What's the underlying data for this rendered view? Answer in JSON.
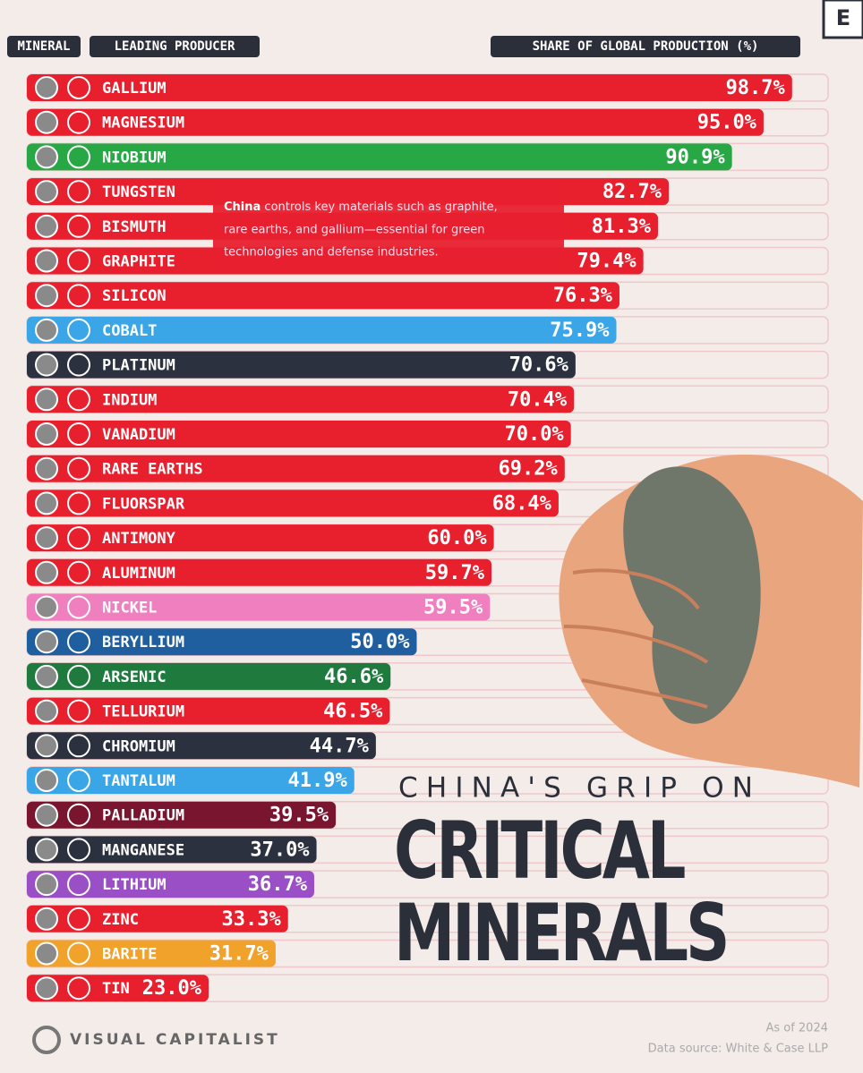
{
  "chart_data": {
    "type": "bar",
    "orientation": "horizontal",
    "title": "CHINA'S GRIP ON",
    "title_main": "CRITICAL MINERALS",
    "column_headers": [
      "MINERAL",
      "LEADING PRODUCER",
      "SHARE OF GLOBAL PRODUCTION (%)"
    ],
    "annotation_bold": "China",
    "annotation": [
      "controls key materials such as graphite,",
      "rare earths, and gallium—essential for green",
      "technologies and defense industries."
    ],
    "categories": [
      "GALLIUM",
      "MAGNESIUM",
      "NIOBIUM",
      "TUNGSTEN",
      "BISMUTH",
      "GRAPHITE",
      "SILICON",
      "COBALT",
      "PLATINUM",
      "INDIUM",
      "VANADIUM",
      "RARE EARTHS",
      "FLUORSPAR",
      "ANTIMONY",
      "ALUMINUM",
      "NICKEL",
      "BERYLLIUM",
      "ARSENIC",
      "TELLURIUM",
      "CHROMIUM",
      "TANTALUM",
      "PALLADIUM",
      "MANGANESE",
      "LITHIUM",
      "ZINC",
      "BARITE",
      "TIN"
    ],
    "values": [
      98.7,
      95.0,
      90.9,
      82.7,
      81.3,
      79.4,
      76.3,
      75.9,
      70.6,
      70.4,
      70.0,
      69.2,
      68.4,
      60.0,
      59.7,
      59.5,
      50.0,
      46.6,
      46.5,
      44.7,
      41.9,
      39.5,
      37.0,
      36.7,
      33.3,
      31.7,
      23.0
    ],
    "value_labels": [
      "98.7%",
      "95.0%",
      "90.9%",
      "82.7%",
      "81.3%",
      "79.4%",
      "76.3%",
      "75.9%",
      "70.6%",
      "70.4%",
      "70.0%",
      "69.2%",
      "68.4%",
      "60.0%",
      "59.7%",
      "59.5%",
      "50.0%",
      "46.6%",
      "46.5%",
      "44.7%",
      "41.9%",
      "39.5%",
      "37.0%",
      "36.7%",
      "33.3%",
      "31.7%",
      "23.0%"
    ],
    "colors": [
      "#e8202e",
      "#e8202e",
      "#27a844",
      "#e8202e",
      "#e8202e",
      "#e8202e",
      "#e8202e",
      "#3aa6e8",
      "#2c3140",
      "#e8202e",
      "#e8202e",
      "#e8202e",
      "#e8202e",
      "#e8202e",
      "#e8202e",
      "#f07fc0",
      "#1f5fa0",
      "#1e7a3d",
      "#e8202e",
      "#2c3140",
      "#3aa6e8",
      "#7a1530",
      "#2c3140",
      "#9b4fc7",
      "#e8202e",
      "#f0a22a",
      "#e8202e"
    ],
    "brand": "VISUAL CAPITALIST",
    "logo": "E",
    "date_note": "As of 2024",
    "source": "Data source: White & Case LLP"
  }
}
